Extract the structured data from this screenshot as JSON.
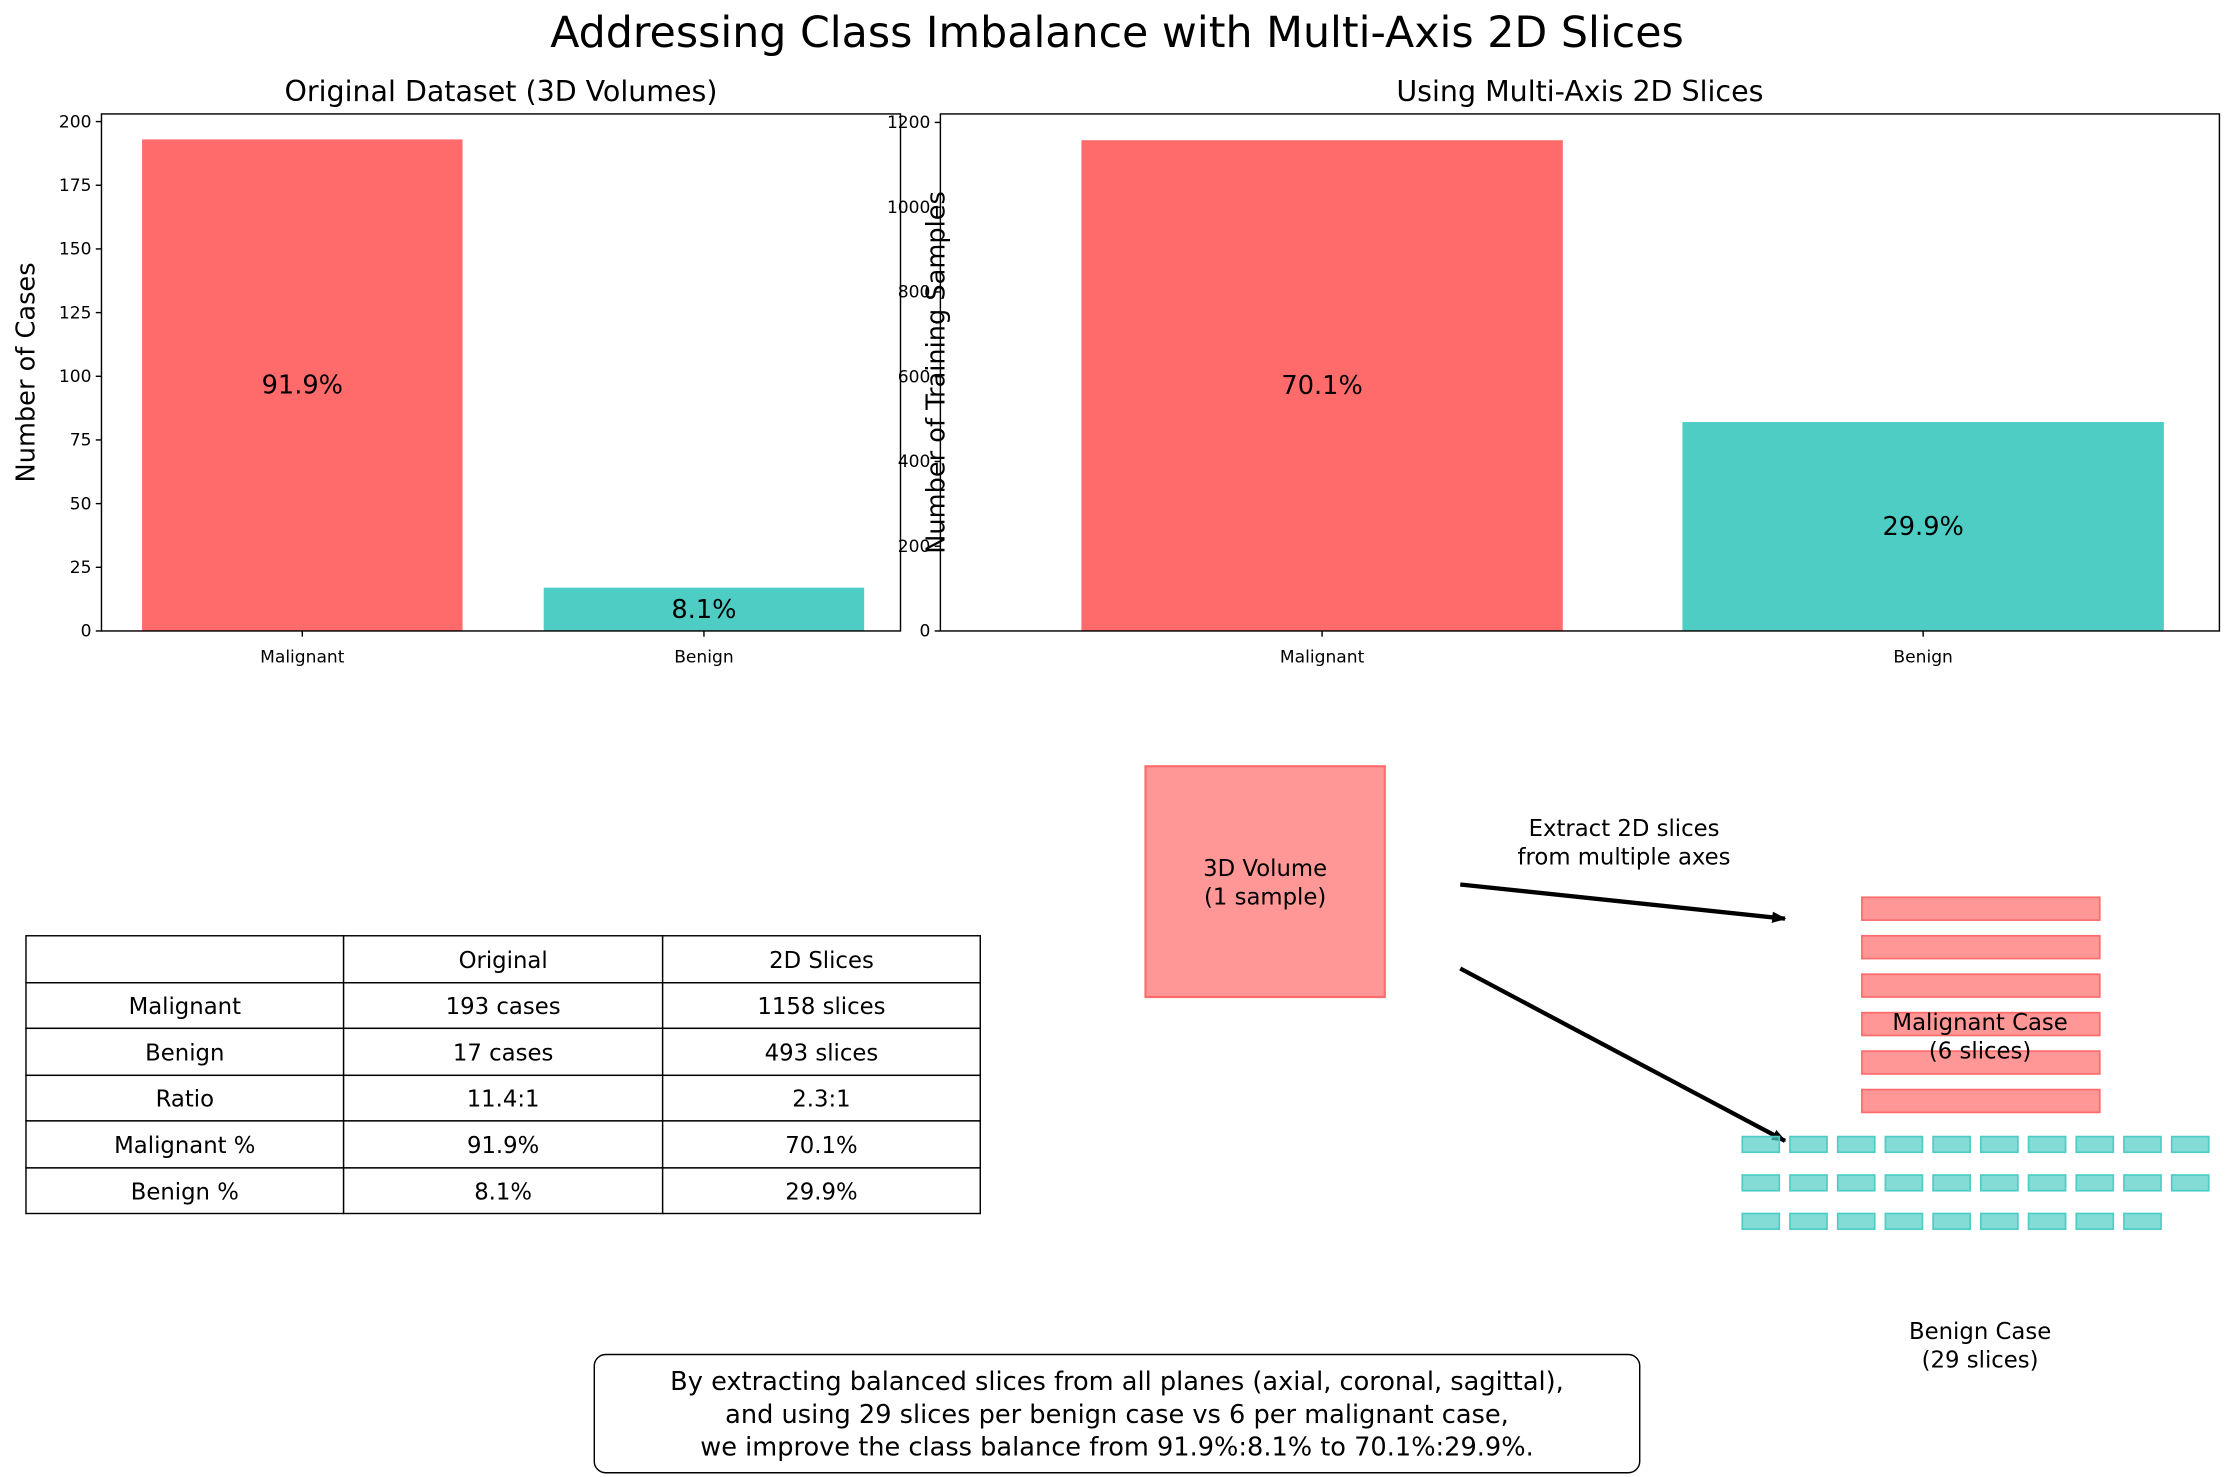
{
  "title": "Addressing Class Imbalance with Multi-Axis 2D Slices",
  "chart_data": [
    {
      "type": "bar",
      "title": "Original Dataset (3D Volumes)",
      "xlabel": "",
      "ylabel": "Number of Cases",
      "categories": [
        "Malignant",
        "Benign"
      ],
      "values": [
        193,
        17
      ],
      "data_labels": [
        "91.9%",
        "8.1%"
      ],
      "colors": [
        "#ff6b6b",
        "#4ecdc4"
      ],
      "ylim": [
        0,
        203
      ],
      "yticks": [
        0,
        25,
        50,
        75,
        100,
        125,
        150,
        175,
        200
      ]
    },
    {
      "type": "bar",
      "title": "Using Multi-Axis 2D Slices",
      "xlabel": "",
      "ylabel": "Number of Training Samples",
      "categories": [
        "Malignant",
        "Benign"
      ],
      "values": [
        1158,
        493
      ],
      "data_labels": [
        "70.1%",
        "29.9%"
      ],
      "colors": [
        "#ff6b6b",
        "#4ecdc4"
      ],
      "ylim": [
        0,
        1220
      ],
      "yticks": [
        0,
        200,
        400,
        600,
        800,
        1000,
        1200
      ]
    }
  ],
  "table": {
    "header": [
      "",
      "Original",
      "2D Slices"
    ],
    "rows": [
      [
        "Malignant",
        "193 cases",
        "1158 slices"
      ],
      [
        "Benign",
        "17 cases",
        "493 slices"
      ],
      [
        "Ratio",
        "11.4:1",
        "2.3:1"
      ],
      [
        "Malignant %",
        "91.9%",
        "70.1%"
      ],
      [
        "Benign %",
        "8.1%",
        "29.9%"
      ]
    ]
  },
  "diagram": {
    "volume_label": [
      "3D Volume",
      "(1 sample)"
    ],
    "arrow_label": [
      "Extract 2D slices",
      "from multiple axes"
    ],
    "malignant_label": [
      "Malignant Case",
      "(6 slices)"
    ],
    "benign_label": [
      "Benign Case",
      "(29 slices)"
    ],
    "malignant_slices": 6,
    "benign_slices": 29,
    "malignant_color": "#ff6b6b",
    "benign_color": "#4ecdc4"
  },
  "footnote": [
    "By extracting balanced slices from all planes (axial, coronal, sagittal),",
    "and using 29 slices per benign case vs 6 per malignant case,",
    "we improve the class balance from 91.9%:8.1% to 70.1%:29.9%."
  ]
}
